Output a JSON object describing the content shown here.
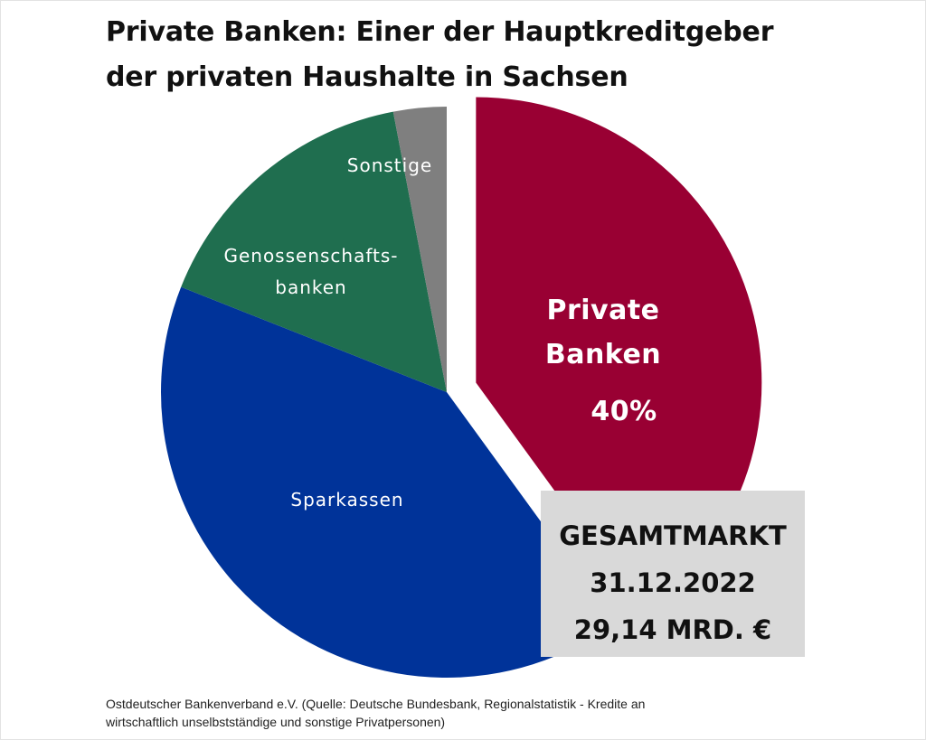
{
  "chart_data": {
    "type": "pie",
    "title": "Private Banken: Einer der Hauptkreditgeber der privaten Haushalte in Sachsen",
    "title_lines": [
      "Private Banken: Einer der Hauptkreditgeber",
      "der privaten Haushalte in Sachsen"
    ],
    "slices": [
      {
        "label": "Private Banken",
        "label_lines": [
          "Private",
          "Banken"
        ],
        "value": 40,
        "value_label": "40%",
        "color": "#990033",
        "exploded": true
      },
      {
        "label": "Sparkassen",
        "label_lines": [
          "Sparkassen"
        ],
        "value": 41,
        "color": "#003399"
      },
      {
        "label": "Genossenschaftsbanken",
        "label_lines": [
          "Genossenschafts-",
          "banken"
        ],
        "value": 16,
        "color": "#1f6e4f"
      },
      {
        "label": "Sonstige",
        "label_lines": [
          "Sonstige"
        ],
        "value": 3,
        "color": "#7f7f7f"
      }
    ],
    "total": {
      "lines": [
        "GESAMTMARKT",
        "31.12.2022",
        "29,14 MRD. €"
      ]
    }
  },
  "footer": {
    "lines": [
      "Ostdeutscher Bankenverband e.V. (Quelle: Deutsche Bundesbank, Regionalstatistik - Kredite an",
      "wirtschaftlich unselbstständige und sonstige Privatpersonen)"
    ]
  }
}
